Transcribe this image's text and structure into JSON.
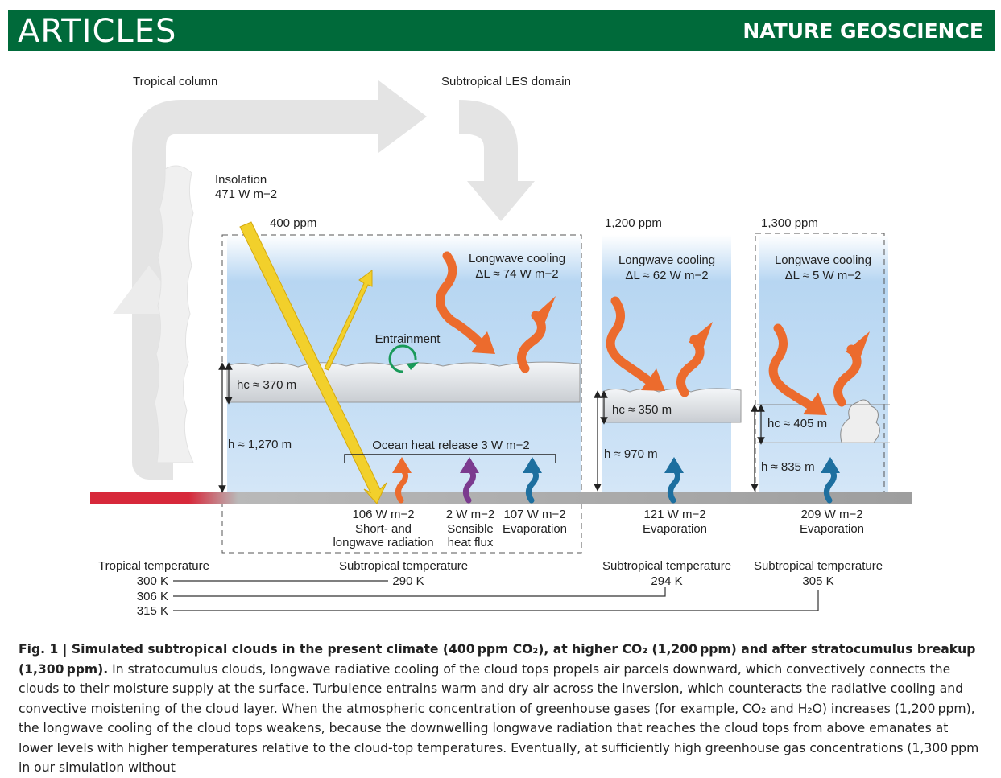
{
  "header": {
    "section": "ARTICLES",
    "journal": "NATURE GEOSCIENCE"
  },
  "figure": {
    "tropical_column": "Tropical column",
    "les_domain": "Subtropical LES domain",
    "insolation_label": "Insolation",
    "insolation_value": "471 W m−2",
    "entrainment": "Entrainment",
    "ocean_heat": "Ocean heat release 3 W m−2",
    "panels": [
      {
        "ppm": "400 ppm",
        "lw_title": "Longwave cooling",
        "lw_value": "ΔL ≈ 74 W m−2",
        "hc": "hc ≈ 370 m",
        "h": "h ≈ 1,270 m"
      },
      {
        "ppm": "1,200 ppm",
        "lw_title": "Longwave cooling",
        "lw_value": "ΔL ≈ 62 W m−2",
        "hc": "hc ≈ 350 m",
        "h": "h ≈ 970 m"
      },
      {
        "ppm": "1,300 ppm",
        "lw_title": "Longwave cooling",
        "lw_value": "ΔL ≈ 5 W m−2",
        "hc": "hc ≈ 405 m",
        "h": "h ≈ 835 m"
      }
    ],
    "fluxes": [
      {
        "value": "106 W m−2",
        "label1": "Short- and",
        "label2": "longwave radiation"
      },
      {
        "value": "2 W m−2",
        "label1": "Sensible",
        "label2": "heat flux"
      },
      {
        "value": "107 W m−2",
        "label1": "Evaporation",
        "label2": ""
      },
      {
        "value": "121 W m−2",
        "label1": "Evaporation",
        "label2": ""
      },
      {
        "value": "209 W m−2",
        "label1": "Evaporation",
        "label2": ""
      }
    ],
    "tropical_temperature": "Tropical temperature",
    "tropical_temps": [
      "300 K",
      "306 K",
      "315 K"
    ],
    "subtropical_temperature": "Subtropical temperature",
    "subtropical_temps": [
      "290 K",
      "294 K",
      "305 K"
    ]
  },
  "caption": {
    "lead": "Fig. 1 | Simulated subtropical clouds in the present climate (400 ppm CO₂), at higher CO₂ (1,200 ppm) and after stratocumulus breakup (1,300 ppm).",
    "text": " In stratocumulus clouds, longwave radiative cooling of the cloud tops propels air parcels downward, which convectively connects the clouds to their moisture supply at the surface. Turbulence entrains warm and dry air across the inversion, which counteracts the radiative cooling and convective moistening of the cloud layer. When the atmospheric concentration of greenhouse gases (for example, CO₂ and H₂O) increases (1,200 ppm), the longwave cooling of the cloud tops weakens, because the downwelling longwave radiation that reaches the cloud tops from above emanates at lower levels with higher temperatures relative to the cloud-top temperatures. Eventually, at sufficiently high greenhouse gas concentrations (1,300 ppm in our simulation without"
  },
  "colors": {
    "header": "#006a3a",
    "sky": "#a9cdee",
    "orange": "#ec6b2d",
    "purple": "#7b3b8f",
    "blue": "#1d6f9f",
    "sun": "#f2d02b",
    "green": "#1a9a5a",
    "warm": "#d7283a"
  }
}
